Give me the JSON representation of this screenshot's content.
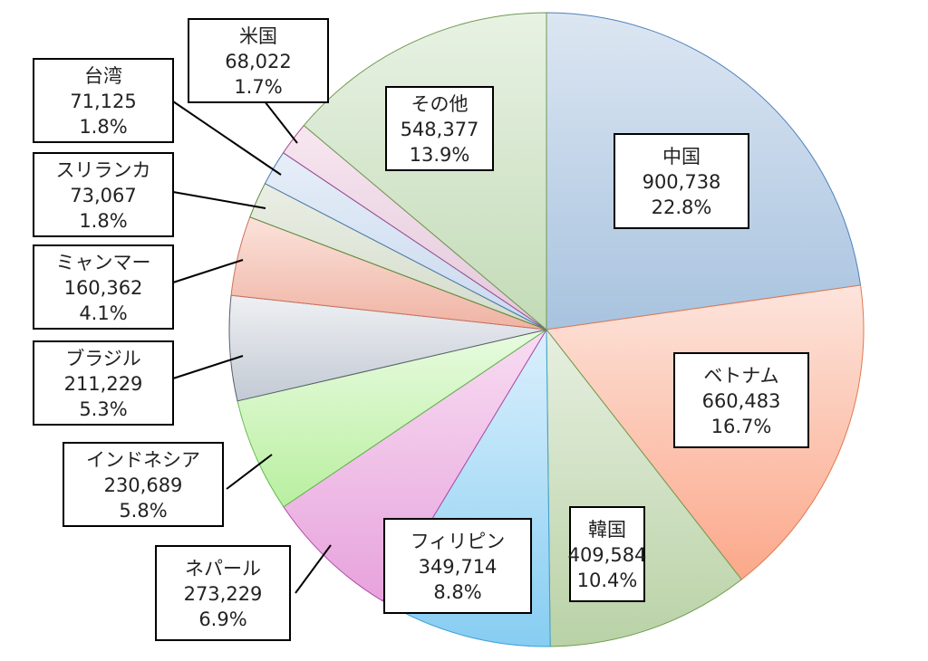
{
  "chart_data": {
    "type": "pie",
    "title": "",
    "start_angle_deg": 0,
    "direction": "clockwise",
    "slices": [
      {
        "name": "中国",
        "value": 900738,
        "percent": "22.8%",
        "color_light": "#dce6f2",
        "color_dark": "#a8c3df",
        "edge": "#4f81bd"
      },
      {
        "name": "ベトナム",
        "value": 660483,
        "percent": "16.7%",
        "color_light": "#fde4dc",
        "color_dark": "#fba88a",
        "edge": "#e07a50"
      },
      {
        "name": "韓国",
        "value": 409584,
        "percent": "10.4%",
        "color_light": "#e6efe0",
        "color_dark": "#b9d2a6",
        "edge": "#6f9a4e"
      },
      {
        "name": "フィリピン",
        "value": 349714,
        "percent": "8.8%",
        "color_light": "#dcf0fc",
        "color_dark": "#86cdf2",
        "edge": "#3b9fd6"
      },
      {
        "name": "ネパール",
        "value": 273229,
        "percent": "6.9%",
        "color_light": "#f8dcf2",
        "color_dark": "#e7a3dc",
        "edge": "#b04aa8"
      },
      {
        "name": "インドネシア",
        "value": 230689,
        "percent": "5.8%",
        "color_light": "#e8fbe0",
        "color_dark": "#b9ef9f",
        "edge": "#5fb84a"
      },
      {
        "name": "ブラジル",
        "value": 211229,
        "percent": "5.3%",
        "color_light": "#eef0f3",
        "color_dark": "#c3cad4",
        "edge": "#58606c"
      },
      {
        "name": "ミャンマー",
        "value": 160362,
        "percent": "4.1%",
        "color_light": "#fbe2da",
        "color_dark": "#efb3a3",
        "edge": "#d0705a"
      },
      {
        "name": "スリランカ",
        "value": 73067,
        "percent": "1.8%",
        "color_light": "#eaeee4",
        "color_dark": "#d3dccb",
        "edge": "#5a8a3a"
      },
      {
        "name": "台湾",
        "value": 71125,
        "percent": "1.8%",
        "color_light": "#e6eef8",
        "color_dark": "#c9d9ee",
        "edge": "#4a78b0"
      },
      {
        "name": "米国",
        "value": 68022,
        "percent": "1.7%",
        "color_light": "#f7e6f0",
        "color_dark": "#e3c8da",
        "edge": "#a04a90"
      },
      {
        "name": "その他",
        "value": 548377,
        "percent": "13.9%",
        "color_light": "#e8f2e4",
        "color_dark": "#c3dbb7",
        "edge": "#6f9a4e"
      }
    ],
    "legend": "none"
  }
}
